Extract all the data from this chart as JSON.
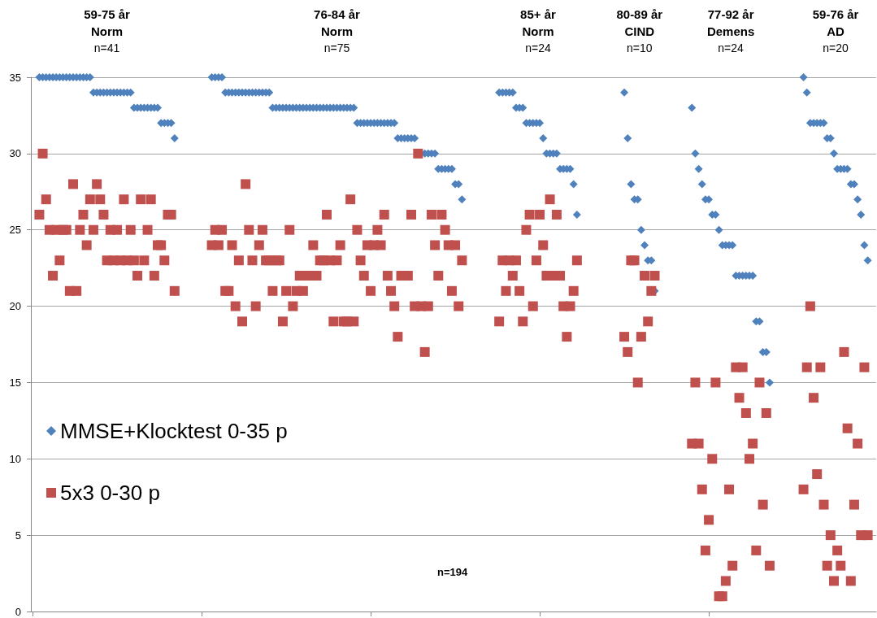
{
  "chart_data": {
    "type": "scatter",
    "categories": [
      null,
      null,
      null,
      null,
      null,
      null,
      null,
      null,
      null,
      null,
      null,
      null,
      null,
      null,
      null,
      null,
      null,
      null,
      null,
      null,
      null,
      null,
      null,
      null,
      null,
      null,
      null,
      null,
      null,
      null,
      null,
      null,
      null,
      null,
      null,
      null,
      null,
      null,
      null,
      null,
      null,
      null,
      null,
      null,
      null,
      null,
      null,
      null,
      null,
      null,
      null,
      null,
      null,
      null,
      null,
      null,
      null,
      null,
      null,
      null,
      null,
      null,
      null,
      null,
      null,
      null,
      null,
      null,
      null,
      null,
      null,
      null,
      null,
      null,
      null,
      null,
      null,
      null,
      null,
      null,
      null,
      null,
      null,
      null,
      null,
      null,
      null,
      null,
      null,
      null,
      null,
      null,
      null,
      null,
      null,
      null,
      null,
      null,
      null,
      null,
      null,
      null,
      null,
      null,
      null,
      null,
      null,
      null,
      null,
      null,
      null,
      null,
      null,
      null,
      null,
      null,
      null,
      null,
      null,
      null,
      null,
      null,
      null,
      null,
      null,
      null,
      null,
      null,
      null,
      null,
      null,
      null,
      null,
      null,
      null,
      null,
      null,
      null,
      null,
      null,
      null,
      null,
      null,
      null,
      null,
      null,
      null,
      null,
      null,
      null,
      null,
      null,
      null,
      null,
      null,
      null,
      null,
      null,
      null,
      null,
      null,
      null,
      null,
      null,
      null,
      null,
      null,
      null,
      null,
      null,
      null,
      null,
      null,
      null,
      null,
      null,
      null,
      null,
      null,
      null,
      null,
      null,
      null,
      null,
      null,
      null,
      null,
      null,
      null,
      null,
      null,
      null,
      null,
      null,
      null,
      null,
      null,
      null,
      null,
      null,
      null,
      null,
      null,
      null,
      null,
      null,
      null,
      null,
      null,
      null,
      null,
      null,
      null,
      null,
      null,
      null,
      null,
      null,
      null,
      null,
      null,
      null,
      null,
      null,
      null,
      null,
      null,
      null,
      null,
      null,
      null,
      null,
      null,
      null,
      null,
      null,
      null,
      null,
      null,
      null,
      null,
      null,
      null,
      null,
      null,
      null,
      null,
      null,
      null,
      null
    ],
    "series": [
      {
        "name": "MMSE+Klocktest 0-35 p",
        "color": "#4f81bd",
        "marker": "diamond",
        "values": [
          null,
          null,
          35,
          35,
          35,
          35,
          35,
          35,
          35,
          35,
          35,
          35,
          35,
          35,
          35,
          35,
          35,
          35,
          34,
          34,
          34,
          34,
          34,
          34,
          34,
          34,
          34,
          34,
          34,
          34,
          33,
          33,
          33,
          33,
          33,
          33,
          33,
          33,
          32,
          32,
          32,
          32,
          31,
          null,
          null,
          null,
          null,
          null,
          null,
          null,
          null,
          null,
          null,
          35,
          35,
          35,
          35,
          34,
          34,
          34,
          34,
          34,
          34,
          34,
          34,
          34,
          34,
          34,
          34,
          34,
          34,
          33,
          33,
          33,
          33,
          33,
          33,
          33,
          33,
          33,
          33,
          33,
          33,
          33,
          33,
          33,
          33,
          33,
          33,
          33,
          33,
          33,
          33,
          33,
          33,
          33,
          32,
          32,
          32,
          32,
          32,
          32,
          32,
          32,
          32,
          32,
          32,
          32,
          31,
          31,
          31,
          31,
          31,
          31,
          null,
          null,
          30,
          30,
          30,
          30,
          29,
          29,
          29,
          29,
          29,
          28,
          28,
          27,
          null,
          null,
          null,
          null,
          null,
          null,
          null,
          null,
          null,
          null,
          34,
          34,
          34,
          34,
          34,
          33,
          33,
          33,
          32,
          32,
          32,
          32,
          32,
          31,
          30,
          30,
          30,
          30,
          29,
          29,
          29,
          29,
          28,
          26,
          null,
          null,
          null,
          null,
          null,
          null,
          null,
          null,
          null,
          null,
          null,
          null,
          null,
          34,
          31,
          28,
          27,
          27,
          25,
          24,
          23,
          23,
          21,
          null,
          null,
          null,
          null,
          null,
          null,
          null,
          null,
          null,
          null,
          33,
          30,
          29,
          28,
          27,
          27,
          26,
          26,
          25,
          24,
          24,
          24,
          24,
          22,
          22,
          22,
          22,
          22,
          22,
          19,
          19,
          17,
          17,
          15,
          null,
          null,
          null,
          null,
          null,
          null,
          null,
          null,
          null,
          35,
          34,
          32,
          32,
          32,
          32,
          32,
          31,
          31,
          30,
          29,
          29,
          29,
          29,
          28,
          28,
          27,
          26,
          24,
          23,
          null,
          null
        ]
      },
      {
        "name": "5x3 0-30 p",
        "color": "#c0504d",
        "marker": "square",
        "values": [
          null,
          null,
          26,
          30,
          27,
          25,
          22,
          25,
          23,
          25,
          25,
          21,
          28,
          21,
          25,
          26,
          24,
          27,
          25,
          28,
          27,
          26,
          23,
          25,
          23,
          25,
          23,
          27,
          23,
          25,
          23,
          22,
          27,
          23,
          25,
          27,
          22,
          24,
          24,
          23,
          26,
          26,
          21,
          null,
          null,
          null,
          null,
          null,
          null,
          null,
          null,
          null,
          null,
          24,
          25,
          24,
          25,
          21,
          21,
          24,
          20,
          23,
          19,
          28,
          25,
          23,
          20,
          24,
          25,
          23,
          23,
          21,
          23,
          23,
          19,
          21,
          25,
          20,
          21,
          22,
          21,
          22,
          22,
          24,
          22,
          23,
          23,
          26,
          23,
          19,
          23,
          24,
          19,
          19,
          27,
          19,
          25,
          23,
          22,
          24,
          21,
          24,
          25,
          24,
          26,
          22,
          21,
          20,
          18,
          22,
          null,
          22,
          26,
          20,
          30,
          20,
          17,
          20,
          26,
          24,
          22,
          26,
          25,
          24,
          21,
          24,
          20,
          23,
          null,
          null,
          null,
          null,
          null,
          null,
          null,
          null,
          null,
          null,
          19,
          23,
          21,
          23,
          22,
          23,
          21,
          19,
          25,
          26,
          20,
          23,
          26,
          24,
          22,
          27,
          22,
          26,
          22,
          20,
          18,
          20,
          21,
          23,
          null,
          null,
          null,
          null,
          null,
          null,
          null,
          null,
          null,
          null,
          null,
          null,
          null,
          18,
          17,
          23,
          23,
          15,
          18,
          22,
          19,
          21,
          22,
          null,
          null,
          null,
          null,
          null,
          null,
          null,
          null,
          null,
          null,
          11,
          15,
          11,
          8,
          4,
          6,
          10,
          15,
          1,
          1,
          2,
          8,
          3,
          16,
          14,
          16,
          13,
          10,
          11,
          4,
          15,
          7,
          13,
          3,
          null,
          null,
          null,
          null,
          null,
          null,
          null,
          null,
          null,
          8,
          16,
          20,
          14,
          9,
          16,
          7,
          3,
          5,
          2,
          4,
          3,
          17,
          12,
          2,
          7,
          11,
          5,
          16,
          5,
          null,
          null
        ]
      }
    ],
    "ylim": [
      0,
      35
    ],
    "yticks": [
      0,
      5,
      10,
      15,
      20,
      25,
      30,
      35
    ],
    "grid": "y",
    "legend": "left",
    "annotations": [
      "59-75 år\nNorm\nn=41",
      "76-84 år\nNorm\nn=75",
      "85+ år\nNorm\nn=24",
      "80-89 år\nCIND\nn=10",
      "77-92 år\nDemens\nn=24",
      "59-76 år\nAD\nn=20",
      "n=194"
    ]
  }
}
